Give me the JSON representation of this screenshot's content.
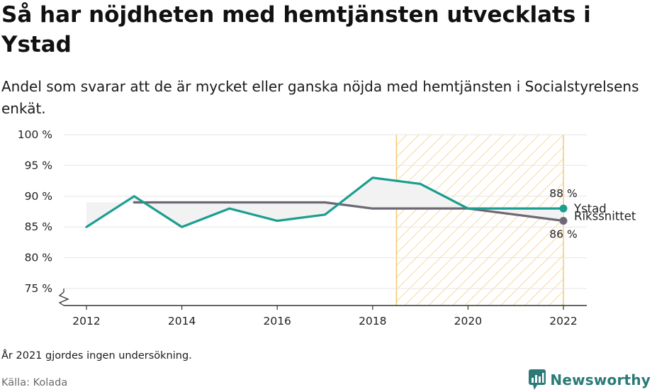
{
  "header": {
    "title": "Så har nöjdheten med hemtjänsten utvecklats i Ystad",
    "subtitle": "Andel som svarar att de är mycket eller ganska nöjda med hemtjänsten i Socialstyrelsens enkät."
  },
  "footer": {
    "note": "År 2021 gjordes ingen undersökning.",
    "source": "Källa: Kolada",
    "brand": "Newsworthy",
    "brand_icon": "newsworthy-logo-icon"
  },
  "colors": {
    "ystad": "#1a9e8f",
    "riks": "#6d6875",
    "highlight": "#f5c76b",
    "grid": "#e6e6e6",
    "axis": "#333333",
    "gap_fill": "#f2f2f2",
    "brand": "#2b7a78"
  },
  "chart_data": {
    "type": "line",
    "x_ticks": [
      2012,
      2014,
      2016,
      2018,
      2020,
      2022
    ],
    "x_tick_labels": [
      "2012",
      "2014",
      "2016",
      "2018",
      "2020",
      "2022"
    ],
    "y_ticks": [
      75,
      80,
      85,
      90,
      95,
      100
    ],
    "y_tick_labels": [
      "75 %",
      "80 %",
      "85 %",
      "90 %",
      "95 %",
      "100 %"
    ],
    "xlim": [
      2012,
      2022
    ],
    "ylim": [
      75,
      100
    ],
    "y_axis_broken": true,
    "grid": "horizontal",
    "highlight_range": [
      2018.5,
      2022
    ],
    "series": [
      {
        "name": "Ystad",
        "color": "#1a9e8f",
        "x": [
          2012,
          2013,
          2014,
          2015,
          2016,
          2017,
          2018,
          2019,
          2020,
          2022
        ],
        "y": [
          85,
          90,
          85,
          88,
          86,
          87,
          93,
          92,
          88,
          88
        ],
        "end_label": "88 %"
      },
      {
        "name": "Rikssnittet",
        "color": "#6d6875",
        "x": [
          2013,
          2014,
          2015,
          2016,
          2017,
          2018,
          2019,
          2020,
          2022
        ],
        "y": [
          89,
          89,
          89,
          89,
          89,
          88,
          88,
          88,
          86
        ],
        "end_label": "86 %"
      }
    ]
  }
}
